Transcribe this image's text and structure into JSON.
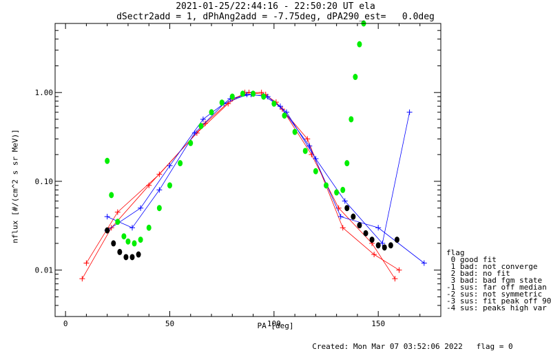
{
  "header": {
    "line1": "2021-01-25/22:44:16 - 22:50:20 UT ela",
    "line2": "dSectr2add = 1, dPhAng2add = -7.75deg, dPA290_est=   0.0deg"
  },
  "footer": {
    "created": "Created: Mon Mar 07 03:52:06 2022",
    "flag": "flag = 0"
  },
  "legend": {
    "title": "flag",
    "entries": [
      " 0 good fit",
      " 1 bad: not converge",
      " 2 bad: no fit",
      " 3 bad: bad fgm state",
      "-1 sus: far off median",
      "-2 sus: not symmetric",
      "-3 sus: fit peak off 90",
      "-4 sus: peaks high var"
    ]
  },
  "chart_data": {
    "type": "line",
    "xlabel": "PA [deg]",
    "ylabel": "nflux [#/(cm^2 s sr MeV)]",
    "xlim": [
      -5,
      180
    ],
    "ylim": [
      0.003,
      6.0
    ],
    "yscale": "log",
    "xticks": [
      0,
      50,
      100,
      150
    ],
    "xtick_labels": [
      "0",
      "50",
      "100",
      "150"
    ],
    "yticks": [
      0.01,
      0.1,
      1.0
    ],
    "ytick_labels": [
      "0.01",
      "0.10",
      "1.00"
    ],
    "colors": {
      "red": "#ff0000",
      "blue": "#0000ff",
      "green": "#00ee00",
      "black": "#000000"
    },
    "series": [
      {
        "color": "red",
        "marker": "plus",
        "x": [
          8,
          22,
          40,
          63,
          78,
          86,
          94,
          101,
          116,
          133,
          148,
          160
        ],
        "y": [
          0.008,
          0.03,
          0.09,
          0.35,
          0.75,
          1.0,
          1.0,
          0.78,
          0.3,
          0.03,
          0.015,
          0.01
        ]
      },
      {
        "color": "red",
        "marker": "plus",
        "x": [
          10,
          25,
          45,
          67,
          80,
          88,
          96,
          104,
          118,
          131,
          147,
          158
        ],
        "y": [
          0.012,
          0.045,
          0.12,
          0.45,
          0.85,
          1.0,
          0.95,
          0.65,
          0.2,
          0.05,
          0.02,
          0.008
        ]
      },
      {
        "color": "blue",
        "marker": "plus",
        "x": [
          20,
          32,
          45,
          62,
          76,
          87,
          95,
          103,
          117,
          132,
          150,
          172
        ],
        "y": [
          0.04,
          0.03,
          0.08,
          0.35,
          0.75,
          0.95,
          0.92,
          0.7,
          0.25,
          0.04,
          0.03,
          0.012
        ]
      },
      {
        "color": "blue",
        "marker": "plus",
        "x": [
          20,
          36,
          50,
          66,
          79,
          89,
          97,
          106,
          120,
          134,
          152,
          165
        ],
        "y": [
          0.028,
          0.05,
          0.15,
          0.5,
          0.85,
          0.95,
          0.9,
          0.6,
          0.18,
          0.06,
          0.02,
          0.6
        ]
      },
      {
        "name": "",
        "color": "green",
        "marker": "dot",
        "x": [
          20,
          22,
          25,
          28,
          30,
          33,
          36,
          40,
          45,
          50,
          55,
          60,
          65,
          70,
          75,
          80,
          85,
          90,
          95,
          100,
          105,
          110,
          115,
          120,
          125,
          130,
          133,
          135,
          137,
          139,
          141,
          143
        ],
        "y": [
          0.17,
          0.07,
          0.035,
          0.024,
          0.021,
          0.02,
          0.022,
          0.03,
          0.05,
          0.09,
          0.16,
          0.27,
          0.42,
          0.6,
          0.77,
          0.9,
          0.97,
          0.97,
          0.9,
          0.75,
          0.55,
          0.36,
          0.22,
          0.13,
          0.09,
          0.075,
          0.08,
          0.16,
          0.5,
          1.5,
          3.5,
          6.0
        ]
      },
      {
        "color": "black",
        "marker": "dot",
        "x": [
          20,
          23,
          26,
          29,
          32,
          35,
          135,
          138,
          141,
          144,
          147,
          150,
          153,
          156,
          159
        ],
        "y": [
          0.028,
          0.02,
          0.016,
          0.014,
          0.014,
          0.015,
          0.05,
          0.04,
          0.032,
          0.026,
          0.022,
          0.019,
          0.018,
          0.019,
          0.022
        ]
      }
    ]
  }
}
